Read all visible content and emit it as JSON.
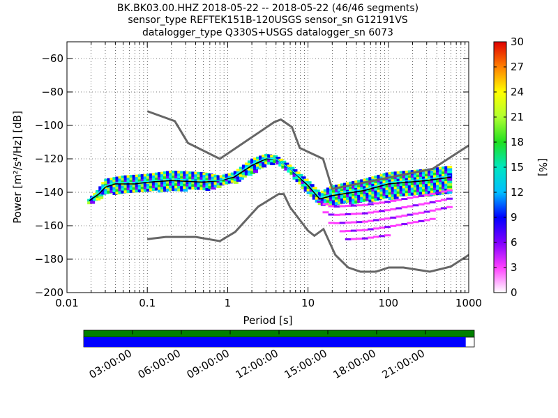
{
  "title_lines": [
    "BK.BK03.00.HHZ   2018-05-22 -- 2018-05-22  (46/46 segments)",
    "sensor_type REFTEK151B-120USGS sensor_sn G12191VS",
    "datalogger_type Q330S+USGS datalogger_sn 6073"
  ],
  "chart_data": {
    "type": "heatmap",
    "xlabel": "Period [s]",
    "ylabel": "Power [m²/s⁴/Hz] [dB]",
    "xscale": "log",
    "xlim": [
      0.01,
      1000
    ],
    "ylim": [
      -200,
      -50
    ],
    "x_ticks": [
      {
        "v": 0.01,
        "label": "0.01"
      },
      {
        "v": 0.1,
        "label": "0.1"
      },
      {
        "v": 1,
        "label": "1"
      },
      {
        "v": 10,
        "label": "10"
      },
      {
        "v": 100,
        "label": "100"
      },
      {
        "v": 1000,
        "label": "1000"
      }
    ],
    "y_ticks": [
      {
        "v": -60,
        "label": "−60"
      },
      {
        "v": -80,
        "label": "−80"
      },
      {
        "v": -100,
        "label": "−100"
      },
      {
        "v": -120,
        "label": "−120"
      },
      {
        "v": -140,
        "label": "−140"
      },
      {
        "v": -160,
        "label": "−160"
      },
      {
        "v": -180,
        "label": "−180"
      },
      {
        "v": -200,
        "label": "−200"
      }
    ],
    "grid": "dotted",
    "colorbar": {
      "label": "[%]",
      "range": [
        0,
        30
      ],
      "ticks": [
        "0",
        "3",
        "6",
        "9",
        "12",
        "15",
        "18",
        "21",
        "24",
        "27",
        "30"
      ]
    },
    "noise_model_high": [
      [
        0.1,
        -91.5
      ],
      [
        0.22,
        -97.4
      ],
      [
        0.32,
        -110.5
      ],
      [
        0.8,
        -120
      ],
      [
        3.8,
        -98
      ],
      [
        4.6,
        -96.5
      ],
      [
        6.3,
        -101
      ],
      [
        7.9,
        -113.5
      ],
      [
        15.4,
        -120
      ],
      [
        20,
        -138
      ],
      [
        354.8,
        -126
      ],
      [
        1000,
        -112
      ]
    ],
    "noise_model_low": [
      [
        0.1,
        -168
      ],
      [
        0.17,
        -166.7
      ],
      [
        0.4,
        -166.7
      ],
      [
        0.8,
        -169.2
      ],
      [
        1.24,
        -163.7
      ],
      [
        2.4,
        -148.6
      ],
      [
        4.3,
        -141.1
      ],
      [
        5,
        -141.1
      ],
      [
        6,
        -149
      ],
      [
        10,
        -163
      ],
      [
        12,
        -166
      ],
      [
        15.6,
        -162
      ],
      [
        21.9,
        -177.5
      ],
      [
        31.6,
        -185
      ],
      [
        45,
        -187.5
      ],
      [
        70,
        -187.5
      ],
      [
        101,
        -185
      ],
      [
        154,
        -185
      ],
      [
        328,
        -187.5
      ],
      [
        600,
        -184.4
      ],
      [
        1000,
        -177.5
      ]
    ],
    "mean_curve": [
      [
        0.019,
        -145
      ],
      [
        0.025,
        -141
      ],
      [
        0.03,
        -137
      ],
      [
        0.04,
        -135
      ],
      [
        0.07,
        -135
      ],
      [
        0.1,
        -134
      ],
      [
        0.2,
        -133
      ],
      [
        0.5,
        -134
      ],
      [
        0.8,
        -133
      ],
      [
        1.2,
        -131
      ],
      [
        2,
        -124
      ],
      [
        3,
        -120
      ],
      [
        4,
        -120
      ],
      [
        6,
        -126
      ],
      [
        10,
        -136
      ],
      [
        14,
        -144
      ],
      [
        20,
        -142
      ],
      [
        50,
        -139
      ],
      [
        100,
        -135
      ],
      [
        300,
        -133
      ],
      [
        600,
        -131
      ]
    ],
    "median_curve": [
      [
        0.019,
        -144
      ],
      [
        0.025,
        -140
      ],
      [
        0.03,
        -136
      ],
      [
        0.04,
        -134
      ],
      [
        0.07,
        -134
      ],
      [
        0.1,
        -133.5
      ],
      [
        0.2,
        -132
      ],
      [
        0.5,
        -133
      ],
      [
        0.8,
        -133
      ],
      [
        1.2,
        -130
      ],
      [
        2,
        -123
      ],
      [
        3,
        -119.5
      ],
      [
        4,
        -120
      ],
      [
        6,
        -126
      ],
      [
        10,
        -135
      ],
      [
        14,
        -143
      ],
      [
        20,
        -141
      ],
      [
        50,
        -138
      ],
      [
        100,
        -134
      ],
      [
        300,
        -132
      ],
      [
        600,
        -130
      ]
    ],
    "band_high": [
      [
        0.019,
        -144
      ],
      [
        0.025,
        -138
      ],
      [
        0.03,
        -132
      ],
      [
        0.05,
        -130
      ],
      [
        0.1,
        -129
      ],
      [
        0.2,
        -127
      ],
      [
        0.5,
        -128
      ],
      [
        0.8,
        -130
      ],
      [
        1.2,
        -128
      ],
      [
        2,
        -120
      ],
      [
        3,
        -117
      ],
      [
        4,
        -118
      ],
      [
        6,
        -124
      ],
      [
        10,
        -133
      ],
      [
        14,
        -140
      ],
      [
        20,
        -136
      ],
      [
        50,
        -132
      ],
      [
        100,
        -128
      ],
      [
        300,
        -126
      ],
      [
        600,
        -124
      ]
    ],
    "band_low": [
      [
        0.019,
        -146
      ],
      [
        0.025,
        -144
      ],
      [
        0.03,
        -140
      ],
      [
        0.05,
        -140
      ],
      [
        0.1,
        -139
      ],
      [
        0.2,
        -138
      ],
      [
        0.5,
        -138
      ],
      [
        0.8,
        -136
      ],
      [
        1.2,
        -134
      ],
      [
        2,
        -128
      ],
      [
        3,
        -123
      ],
      [
        4,
        -122
      ],
      [
        6,
        -128
      ],
      [
        10,
        -140
      ],
      [
        14,
        -147
      ],
      [
        20,
        -147
      ],
      [
        50,
        -145
      ],
      [
        100,
        -143
      ],
      [
        300,
        -141
      ],
      [
        600,
        -140
      ]
    ],
    "outlier_low_edge": [
      [
        14,
        -147
      ],
      [
        20,
        -160
      ],
      [
        30,
        -168
      ],
      [
        50,
        -170
      ],
      [
        80,
        -168
      ],
      [
        100,
        -165
      ],
      [
        200,
        -161
      ],
      [
        300,
        -158
      ],
      [
        600,
        -150
      ]
    ],
    "outlier_high_edge": [
      [
        14,
        -145
      ],
      [
        20,
        -148
      ],
      [
        50,
        -147
      ],
      [
        100,
        -145
      ],
      [
        300,
        -141
      ],
      [
        600,
        -138
      ]
    ],
    "data_availability": {
      "time_ticks": [
        "03:00:00",
        "06:00:00",
        "09:00:00",
        "12:00:00",
        "15:00:00",
        "18:00:00",
        "21:00:00"
      ],
      "coverage_fraction": 0.978
    }
  },
  "colors": {
    "noise_model": "#666666",
    "mean": "#000000",
    "median": "#00ffff",
    "gap_bar": "#008000",
    "data_bar": "#0000ff"
  }
}
